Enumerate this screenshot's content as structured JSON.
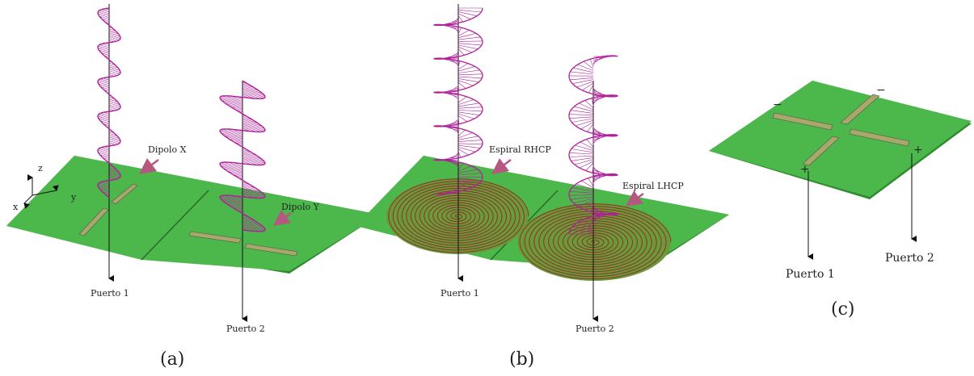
{
  "panels": [
    {
      "caption": "(a)",
      "axes": {
        "z": "z",
        "y": "y",
        "x": "x"
      },
      "labels": [
        "Dipolo X",
        "Dipolo Y"
      ],
      "ports": [
        "Puerto 1",
        "Puerto 2"
      ]
    },
    {
      "caption": "(b)",
      "labels": [
        "Espiral RHCP",
        "Espiral LHCP"
      ],
      "ports": [
        "Puerto 1",
        "Puerto 2"
      ]
    },
    {
      "caption": "(c)",
      "signs": [
        "−",
        "−",
        "+",
        "+"
      ],
      "ports": [
        "Puerto 1",
        "Puerto 2"
      ]
    }
  ]
}
